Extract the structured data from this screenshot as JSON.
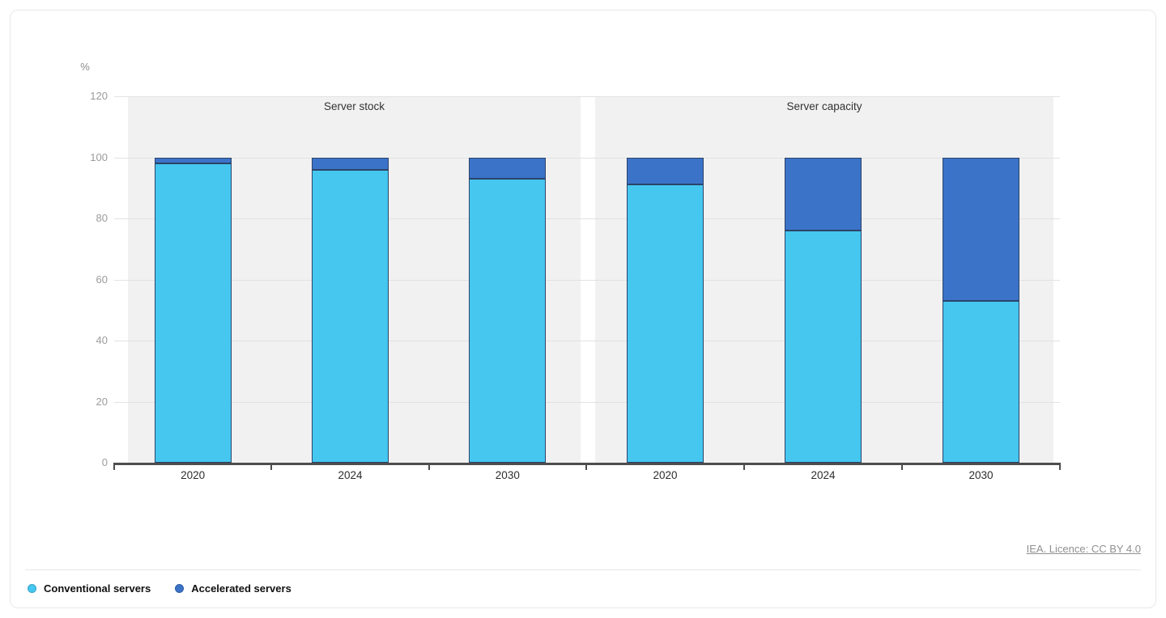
{
  "chart": {
    "unit_label": "%",
    "attribution": "IEA. Licence: CC BY 4.0"
  },
  "chart_data": {
    "type": "bar",
    "stacked": true,
    "unit": "%",
    "ylim": [
      0,
      120
    ],
    "yticks": [
      0,
      20,
      40,
      60,
      80,
      100,
      120
    ],
    "grid": true,
    "legend_position": "bottom-left",
    "panels": [
      {
        "title": "Server stock",
        "categories": [
          "2020",
          "2024",
          "2030"
        ],
        "series": [
          {
            "name": "Conventional servers",
            "color": "#45C7F0",
            "values": [
              98,
              96,
              93
            ]
          },
          {
            "name": "Accelerated servers",
            "color": "#3B73C8",
            "values": [
              2,
              4,
              7
            ]
          }
        ]
      },
      {
        "title": "Server capacity",
        "categories": [
          "2020",
          "2024",
          "2030"
        ],
        "series": [
          {
            "name": "Conventional servers",
            "color": "#45C7F0",
            "values": [
              91,
              76,
              53
            ]
          },
          {
            "name": "Accelerated servers",
            "color": "#3B73C8",
            "values": [
              9,
              24,
              47
            ]
          }
        ]
      }
    ]
  },
  "legend": {
    "items": [
      {
        "label": "Conventional servers",
        "color": "#45C7F0"
      },
      {
        "label": "Accelerated servers",
        "color": "#3B73C8"
      }
    ]
  }
}
